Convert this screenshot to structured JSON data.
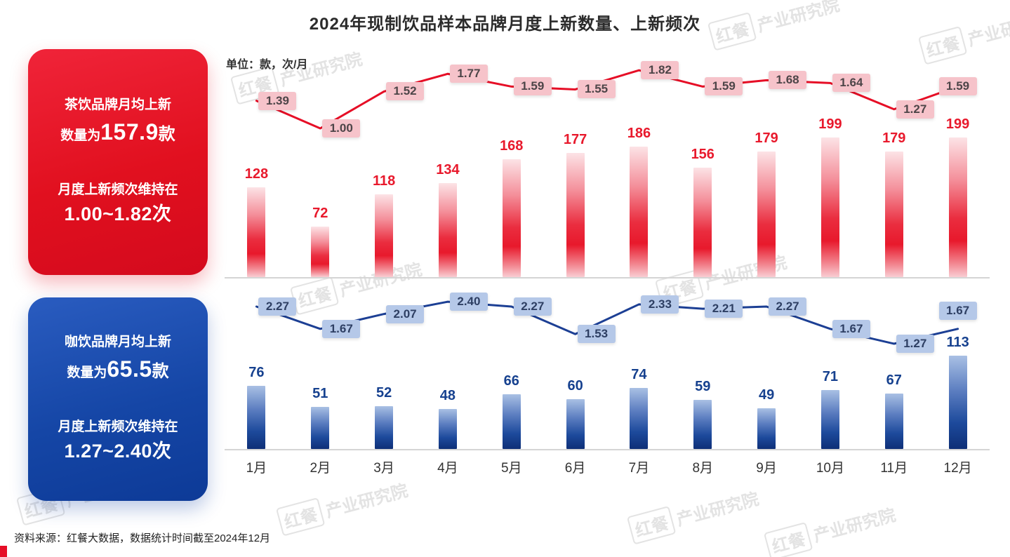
{
  "title": "2024年现制饮品样本品牌月度上新数量、上新频次",
  "unit_label": "单位：款，次/月",
  "source": "资料来源：红餐大数据，数据统计时间截至2024年12月",
  "watermark": {
    "part1": "红餐",
    "part2": "产业研究院"
  },
  "cards": {
    "tea": {
      "line1": "茶饮品牌月均上新",
      "line2_prefix": "数量为",
      "line2_value": "157.9",
      "line2_suffix": "款",
      "line3": "月度上新频次维持在",
      "line4": "1.00~1.82次",
      "color": "#e1101f"
    },
    "coffee": {
      "line1": "咖饮品牌月均上新",
      "line2_prefix": "数量为",
      "line2_value": "65.5",
      "line2_suffix": "款",
      "line3": "月度上新频次维持在",
      "line4": "1.27~2.40次",
      "color": "#1546a6"
    }
  },
  "chart_data": {
    "type": "bar+line combo, two stacked panels",
    "categories": [
      "1月",
      "2月",
      "3月",
      "4月",
      "5月",
      "6月",
      "7月",
      "8月",
      "9月",
      "10月",
      "11月",
      "12月"
    ],
    "panels": [
      {
        "name": "茶饮品牌",
        "bar_series": "月度上新数量（款）",
        "bars": [
          128,
          72,
          118,
          134,
          168,
          177,
          186,
          156,
          179,
          199,
          179,
          199
        ],
        "line_series": "月度上新频次（次/月）",
        "line": [
          "1.39",
          "1.00",
          "1.52",
          "1.77",
          "1.59",
          "1.55",
          "1.82",
          "1.59",
          "1.68",
          "1.64",
          "1.27",
          "1.59"
        ],
        "bar_color": "#e8192c",
        "line_color": "#e60e26",
        "bar_label_color": "#e8192c",
        "label_bg": "#f6c3ca",
        "label_text": "#4d4548"
      },
      {
        "name": "咖饮品牌",
        "bar_series": "月度上新数量（款）",
        "bars": [
          76,
          51,
          52,
          48,
          66,
          60,
          74,
          59,
          49,
          71,
          67,
          113
        ],
        "line_series": "月度上新频次（次/月）",
        "line": [
          "2.27",
          "1.67",
          "2.07",
          "2.40",
          "2.27",
          "1.53",
          "2.33",
          "2.21",
          "2.27",
          "1.67",
          "1.27",
          "1.67"
        ],
        "bar_color": "#16418f",
        "line_color": "#1c3f94",
        "bar_label_color": "#16418f",
        "label_bg": "#b5c8e8",
        "label_text": "#2e3f63"
      }
    ],
    "layout_hint": "grid off, no legend, labels on points, x axis months 1-12"
  }
}
